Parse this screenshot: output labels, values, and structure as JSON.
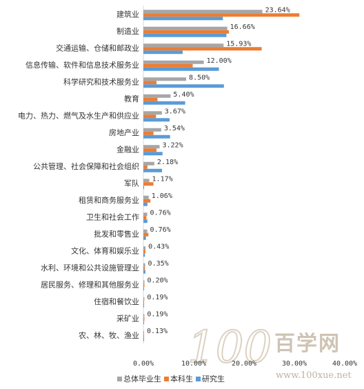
{
  "chart_data": {
    "type": "bar",
    "orientation": "horizontal",
    "categories": [
      "建筑业",
      "制造业",
      "交通运输、仓储和邮政业",
      "信息传输、软件和信息技术服务业",
      "科学研究和技术服务业",
      "教育",
      "电力、热力、燃气及水生产和供应业",
      "房地产业",
      "金融业",
      "公共管理、社会保障和社会组织",
      "军队",
      "租赁和商务服务业",
      "卫生和社会工作",
      "批发和零售业",
      "文化、体育和娱乐业",
      "水利、环境和公共设施管理业",
      "居民服务、修理和其他服务业",
      "住宿和餐饮业",
      "采矿业",
      "农、林、牧、渔业"
    ],
    "series": [
      {
        "name": "总体毕业生",
        "color": "#a6a6a6",
        "values": [
          23.64,
          16.66,
          15.93,
          12.0,
          8.5,
          5.4,
          3.67,
          3.54,
          3.22,
          2.18,
          1.17,
          1.06,
          0.76,
          0.76,
          0.43,
          0.35,
          0.2,
          0.19,
          0.19,
          0.13
        ]
      },
      {
        "name": "本科生",
        "color": "#ed7d31",
        "values": [
          31.0,
          17.0,
          23.5,
          9.8,
          2.6,
          2.8,
          2.5,
          2.0,
          2.6,
          0.8,
          2.0,
          1.4,
          0.6,
          1.0,
          0.4,
          0.3,
          0.2,
          0.1,
          0.2,
          0.1
        ]
      },
      {
        "name": "研究生",
        "color": "#5b9bd5",
        "values": [
          15.8,
          16.5,
          7.8,
          15.0,
          16.0,
          8.3,
          5.2,
          5.3,
          3.8,
          3.7,
          0.1,
          0.8,
          0.8,
          0.5,
          0.3,
          0.4,
          0.1,
          0.1,
          0.1,
          0.1
        ]
      }
    ],
    "data_labels": [
      "23.64%",
      "16.66%",
      "15.93%",
      "12.00%",
      "8.50%",
      "5.40%",
      "3.67%",
      "3.54%",
      "3.22%",
      "2.18%",
      "1.17%",
      "1.06%",
      "0.76%",
      "0.76%",
      "0.43%",
      "0.35%",
      "0.20%",
      "0.19%",
      "0.19%",
      "0.13%"
    ],
    "x_ticks": [
      "0.00%",
      "10.00%",
      "20.00%",
      "30.00%",
      "40.00%"
    ],
    "xlim": [
      0,
      40
    ],
    "grid": false,
    "legend_position": "bottom",
    "title": "",
    "xlabel": "",
    "ylabel": ""
  },
  "watermark": {
    "logo_number": "100",
    "brand": "百学网",
    "url": "www.100xue.net"
  }
}
